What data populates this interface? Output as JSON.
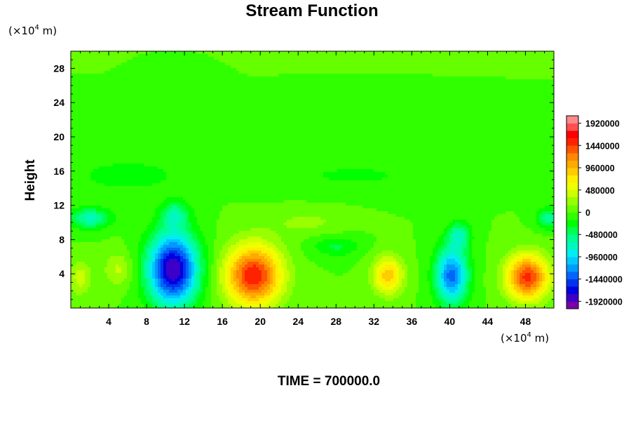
{
  "chart_data": {
    "type": "heatmap",
    "title": "Stream Function",
    "ylabel": "Height",
    "xlabel": "",
    "x_unit_text": {
      "pre": "(×10",
      "exp": "4",
      "post": " m)"
    },
    "y_unit_text": {
      "pre": "(×10",
      "exp": "4",
      "post": " m)"
    },
    "xlim": [
      0,
      51
    ],
    "ylim": [
      0,
      30
    ],
    "x_ticks": [
      4,
      8,
      12,
      16,
      20,
      24,
      28,
      32,
      36,
      40,
      44,
      48
    ],
    "x_tick_labels": [
      "4",
      "8",
      "12",
      "16",
      "20",
      "24",
      "28",
      "32",
      "36",
      "40",
      "44",
      "48"
    ],
    "y_ticks": [
      4,
      8,
      12,
      16,
      20,
      24,
      28
    ],
    "y_tick_labels": [
      "4",
      "8",
      "12",
      "16",
      "20",
      "24",
      "28"
    ],
    "colorbar": {
      "min": -2080000,
      "max": 2080000,
      "ticks": [
        1920000,
        1440000,
        960000,
        480000,
        0,
        -480000,
        -960000,
        -1440000,
        -1920000
      ],
      "tick_labels": [
        "1920000",
        "1440000",
        "960000",
        "480000",
        "0",
        "-480000",
        "-960000",
        "-1440000",
        "-1920000"
      ],
      "levels": 26,
      "colors": [
        "#7a00a8",
        "#3c00c8",
        "#0000e0",
        "#0033f0",
        "#0066f8",
        "#0099ff",
        "#00c8ff",
        "#00eef0",
        "#00f8c0",
        "#00ff90",
        "#00ff50",
        "#00ff00",
        "#30ff00",
        "#66ff00",
        "#99ff00",
        "#ccff00",
        "#eeff00",
        "#ffee00",
        "#ffcc00",
        "#ffaa00",
        "#ff8800",
        "#ff5500",
        "#ff2200",
        "#ff0000",
        "#ff5050",
        "#ff8888"
      ]
    },
    "features": [
      {
        "kind": "min",
        "x": 10.8,
        "y": 4.5,
        "value": -1920000,
        "sx": 2.6,
        "sy": 4.2
      },
      {
        "kind": "max",
        "x": 19.3,
        "y": 3.8,
        "value": 1600000,
        "sx": 2.9,
        "sy": 3.5
      },
      {
        "kind": "max",
        "x": 33.5,
        "y": 3.8,
        "value": 900000,
        "sx": 1.6,
        "sy": 2.2
      },
      {
        "kind": "min",
        "x": 40.2,
        "y": 3.8,
        "value": -1350000,
        "sx": 1.7,
        "sy": 3.3
      },
      {
        "kind": "max",
        "x": 48.2,
        "y": 3.6,
        "value": 1500000,
        "sx": 2.2,
        "sy": 2.6
      },
      {
        "kind": "min",
        "x": 2.0,
        "y": 10.5,
        "value": -700000,
        "sx": 2.2,
        "sy": 1.2
      },
      {
        "kind": "min",
        "x": 11.0,
        "y": 11.0,
        "value": -500000,
        "sx": 1.5,
        "sy": 1.6
      },
      {
        "kind": "min",
        "x": 28.0,
        "y": 7.2,
        "value": -350000,
        "sx": 2.5,
        "sy": 1.2
      },
      {
        "kind": "min",
        "x": 41.0,
        "y": 8.5,
        "value": -600000,
        "sx": 1.2,
        "sy": 1.6
      },
      {
        "kind": "min",
        "x": 50.5,
        "y": 10.5,
        "value": -600000,
        "sx": 1.3,
        "sy": 1.2
      },
      {
        "kind": "min",
        "x": 6.0,
        "y": 15.5,
        "value": -250000,
        "sx": 6.0,
        "sy": 2.0
      },
      {
        "kind": "min",
        "x": 30.0,
        "y": 15.5,
        "value": -180000,
        "sx": 10.0,
        "sy": 2.0
      },
      {
        "kind": "max",
        "x": 5.0,
        "y": 4.5,
        "value": 350000,
        "sx": 1.5,
        "sy": 2.0
      },
      {
        "kind": "max",
        "x": 1.0,
        "y": 3.5,
        "value": 400000,
        "sx": 1.2,
        "sy": 2.0
      },
      {
        "kind": "max",
        "x": 25.0,
        "y": 10.0,
        "value": 200000,
        "sx": 4.0,
        "sy": 1.5
      }
    ],
    "caption": "TIME = 700000.0"
  }
}
